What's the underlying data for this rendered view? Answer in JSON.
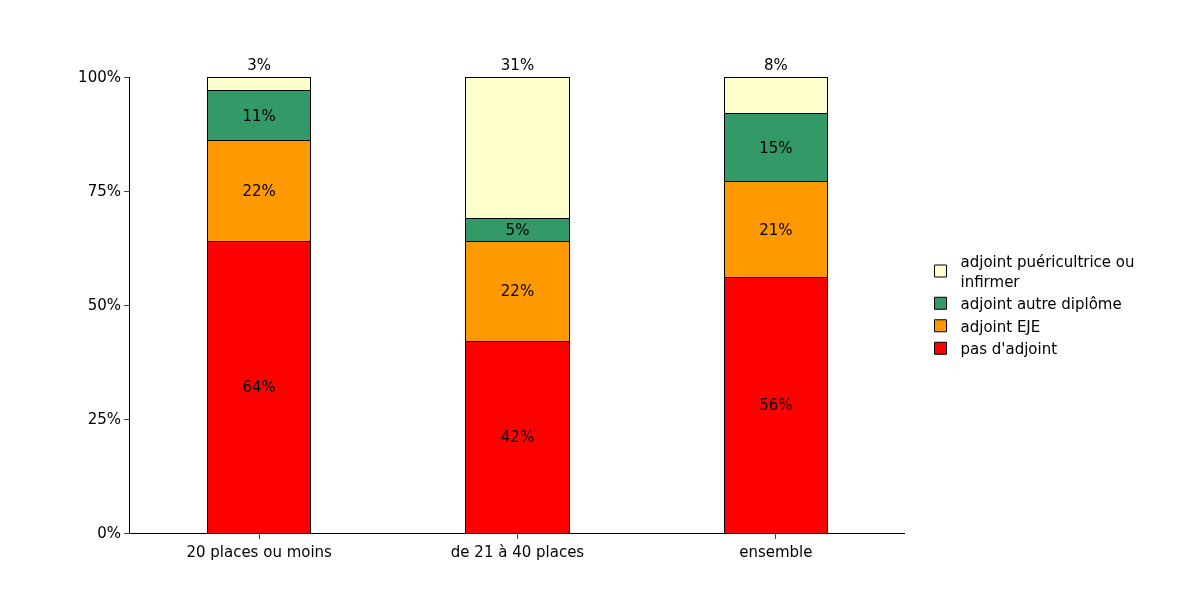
{
  "chart_data": {
    "type": "bar",
    "stacked": true,
    "categories": [
      "20 places ou moins",
      "de 21 à 40 places",
      "ensemble"
    ],
    "series": [
      {
        "name": "pas d'adjoint",
        "color": "#ff0000",
        "values": [
          64,
          42,
          56
        ],
        "value_labels": [
          "64%",
          "42%",
          "56%"
        ]
      },
      {
        "name": "adjoint EJE",
        "color": "#ff9900",
        "values": [
          22,
          22,
          21
        ],
        "value_labels": [
          "22%",
          "22%",
          "21%"
        ]
      },
      {
        "name": "adjoint autre diplôme",
        "color": "#339966",
        "values": [
          11,
          5,
          15
        ],
        "value_labels": [
          "11%",
          "5%",
          "15%"
        ]
      },
      {
        "name": "adjoint puéricultrice ou infirmer",
        "color": "#ffffcc",
        "values": [
          3,
          31,
          8
        ],
        "value_labels": [
          "3%",
          "31%",
          "8%"
        ]
      }
    ],
    "ylim": [
      0,
      100
    ],
    "yticks": [
      {
        "value": 0,
        "label": "0%"
      },
      {
        "value": 25,
        "label": "25%"
      },
      {
        "value": 50,
        "label": "50%"
      },
      {
        "value": 75,
        "label": "75%"
      },
      {
        "value": 100,
        "label": "100%"
      }
    ],
    "legend": "right"
  }
}
